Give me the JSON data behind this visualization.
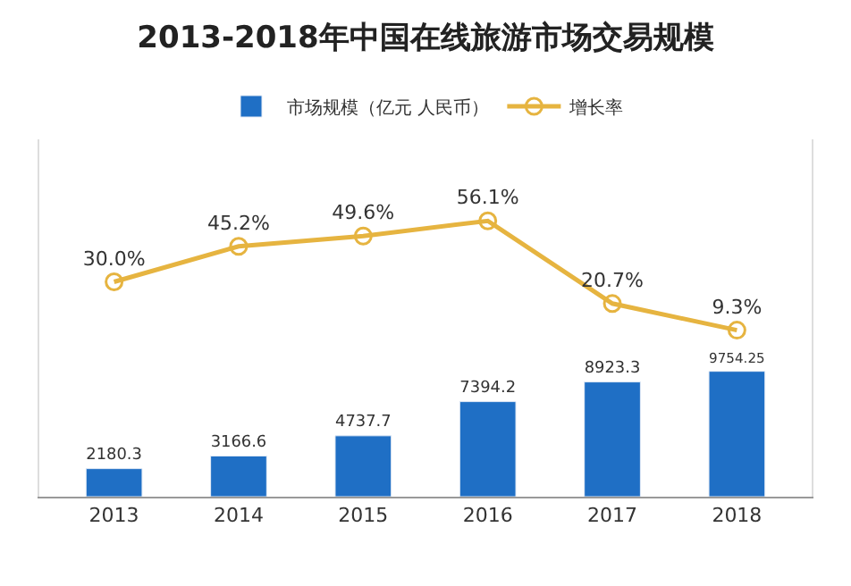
{
  "chart_data": {
    "type": "bar",
    "title": "2013-2018年中国在线旅游市场交易规模",
    "categories": [
      "2013",
      "2014",
      "2015",
      "2016",
      "2017",
      "2018"
    ],
    "series": [
      {
        "name": "市场规模（亿元 人民币）",
        "color": "#1f6fc5",
        "values": [
          2180.3,
          3166.6,
          4737.7,
          7394.2,
          8923.3,
          9754.25
        ],
        "value_labels": [
          "2180.3",
          "3166.6",
          "4737.7",
          "7394.2",
          "8923.3",
          "9754.25"
        ]
      },
      {
        "name": "增长率",
        "type": "line",
        "axis": "y2",
        "color": "#e6b440",
        "marker": "circle",
        "values": [
          30.0,
          45.2,
          49.6,
          56.1,
          20.7,
          9.3
        ],
        "value_labels": [
          "30.0%",
          "45.2%",
          "49.6%",
          "56.1%",
          "20.7%",
          "9.3%"
        ]
      }
    ],
    "ylim": [
      0,
      27800
    ],
    "y2lim": [
      -62,
      91
    ],
    "tick_labels": "x",
    "legend": "top"
  }
}
